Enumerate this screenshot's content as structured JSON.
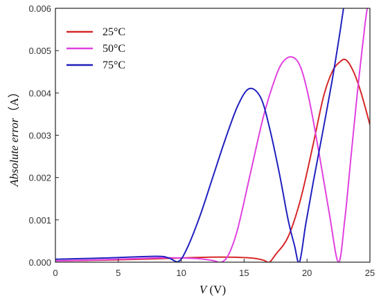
{
  "chart_data": {
    "type": "line",
    "xlabel_var": "V",
    "xlabel_unit": " (V)",
    "ylabel_var": "Absolute error",
    "ylabel_unit": "（A）",
    "xlim": [
      0,
      25
    ],
    "ylim": [
      0,
      0.006
    ],
    "x_ticks": [
      "0",
      "5",
      "10",
      "15",
      "20",
      "25"
    ],
    "y_ticks": [
      "0.000",
      "0.001",
      "0.002",
      "0.003",
      "0.004",
      "0.005",
      "0.006"
    ],
    "grid": false,
    "legend_position": "top-left",
    "series": [
      {
        "name": "25°C",
        "color": "#d62728",
        "x": [
          0,
          4,
          8,
          10,
          13,
          15.5,
          16.5,
          17.0,
          17.5,
          18.5,
          19.5,
          20.5,
          21.3,
          22.0,
          22.6,
          23.1,
          23.7,
          24.3,
          25.0
        ],
        "y": [
          3e-05,
          5e-05,
          8e-05,
          0.0001,
          0.00012,
          0.0001,
          5e-05,
          0.0,
          0.00018,
          0.0006,
          0.0015,
          0.0028,
          0.0039,
          0.0045,
          0.00473,
          0.00478,
          0.0045,
          0.004,
          0.00325
        ]
      },
      {
        "name": "50°C",
        "color": "#e040e0",
        "x": [
          0,
          4,
          8,
          10,
          11.5,
          12.5,
          13.2,
          13.8,
          14.5,
          15.5,
          16.5,
          17.3,
          18.0,
          18.8,
          19.5,
          20.2,
          21.0,
          21.8,
          22.5,
          23.0,
          23.5,
          24.0,
          24.6,
          25.0
        ],
        "y": [
          3e-05,
          6e-05,
          0.0001,
          0.0001,
          8e-05,
          4e-05,
          0.0,
          0.0002,
          0.0008,
          0.0021,
          0.0034,
          0.0042,
          0.0047,
          0.00485,
          0.0046,
          0.0038,
          0.0025,
          0.0011,
          0.0,
          0.001,
          0.0025,
          0.004,
          0.0056,
          0.0064
        ]
      },
      {
        "name": "75°C",
        "color": "#1f1fbf",
        "x": [
          0,
          4,
          8,
          9.0,
          9.8,
          10.5,
          11.5,
          12.5,
          13.5,
          14.5,
          15.4,
          16.3,
          17.0,
          17.8,
          18.5,
          19.0,
          19.4,
          19.9,
          20.5,
          21.2,
          22.0,
          22.6,
          23.0
        ],
        "y": [
          7e-05,
          0.0001,
          0.00014,
          0.0001,
          2e-05,
          0.00035,
          0.0011,
          0.002,
          0.0029,
          0.0037,
          0.0041,
          0.0039,
          0.0032,
          0.0021,
          0.001,
          0.0004,
          0.0,
          0.0009,
          0.0019,
          0.003,
          0.0043,
          0.0054,
          0.0062
        ]
      }
    ]
  }
}
